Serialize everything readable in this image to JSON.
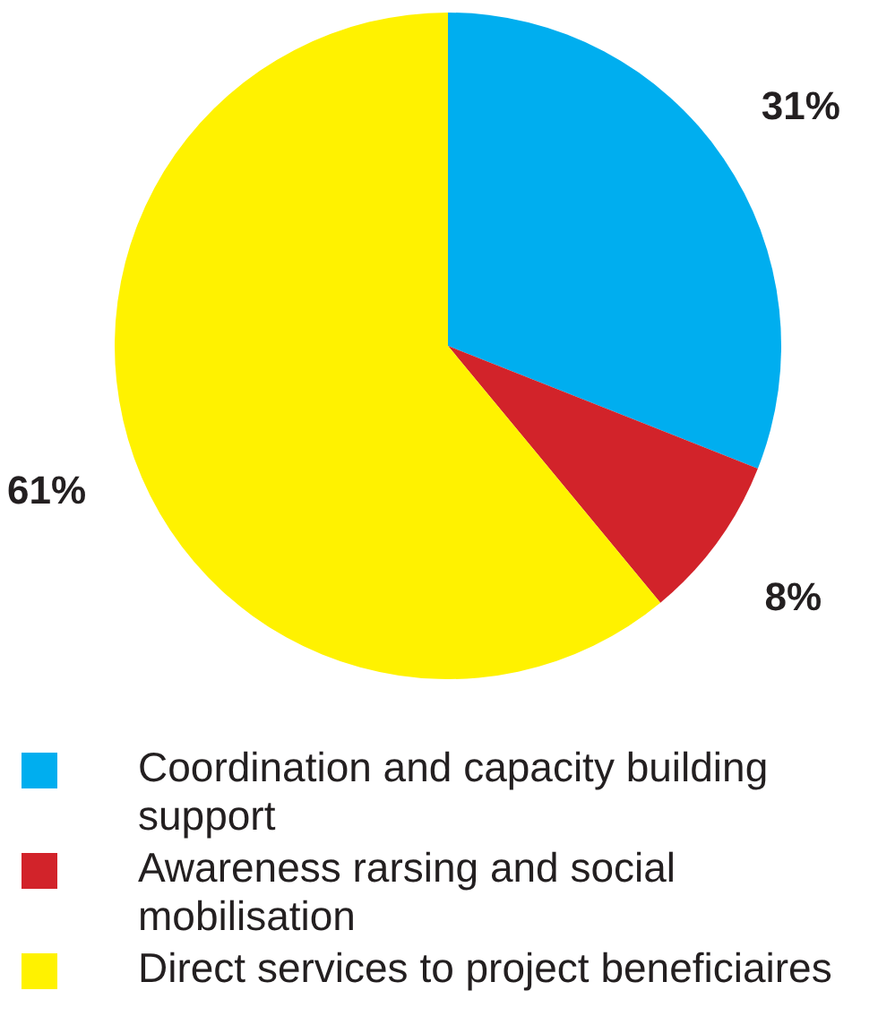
{
  "chart_data": {
    "type": "pie",
    "categories": [
      "Coordination and capacity building support",
      "Awareness rarsing and social mobilisation",
      "Direct services to project beneficiaires"
    ],
    "values": [
      31,
      8,
      61
    ],
    "colors": [
      "#00aeef",
      "#d2232a",
      "#fff200"
    ],
    "value_labels": [
      "31%",
      "8%",
      "61%"
    ],
    "legend": "bottom"
  }
}
